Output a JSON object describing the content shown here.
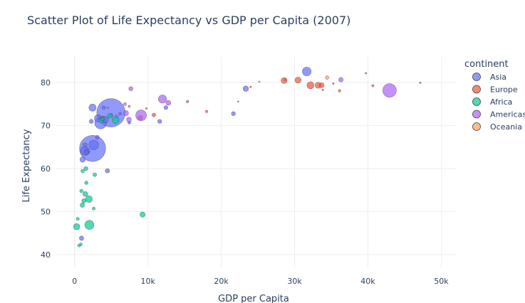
{
  "chart_data": {
    "type": "scatter",
    "title": "Scatter Plot of Life Expectancy vs GDP per Capita (2007)",
    "xlabel": "GDP per Capita",
    "ylabel": "Life Expectancy",
    "xlim": [
      -2500,
      52000
    ],
    "ylim": [
      37,
      86
    ],
    "x_ticks": [
      0,
      10000,
      20000,
      30000,
      40000,
      50000
    ],
    "x_tick_labels": [
      "0",
      "10k",
      "20k",
      "30k",
      "40k",
      "50k"
    ],
    "y_ticks": [
      40,
      50,
      60,
      70,
      80
    ],
    "y_tick_labels": [
      "40",
      "50",
      "60",
      "70",
      "80"
    ],
    "grid": true,
    "legend": {
      "title": "continent",
      "placement": "right"
    },
    "series": [
      {
        "name": "Asia",
        "color": "#636efa",
        "points": [
          [
            4959,
            73.0,
            1319
          ],
          [
            2452,
            64.7,
            1110
          ],
          [
            3541,
            70.6,
            223
          ],
          [
            2605,
            65.5,
            150
          ],
          [
            1391,
            64.1,
            129
          ],
          [
            3190,
            71.7,
            85
          ],
          [
            2442,
            74.2,
            85
          ],
          [
            1713,
            64.0,
            48
          ],
          [
            1091,
            62.1,
            47
          ],
          [
            31656,
            82.6,
            127
          ],
          [
            23348,
            78.6,
            49
          ],
          [
            4185,
            71.4,
            70
          ],
          [
            12452,
            74.2,
            24
          ],
          [
            28718,
            80.7,
            10
          ],
          [
            47143,
            80.0,
            4
          ],
          [
            39725,
            82.2,
            4.5
          ],
          [
            2281,
            71.0,
            28
          ],
          [
            1593,
            63.8,
            32
          ],
          [
            4471,
            59.5,
            31
          ],
          [
            7458,
            70.7,
            14
          ],
          [
            11606,
            71.0,
            27
          ],
          [
            21655,
            72.8,
            27
          ],
          [
            3970,
            74.2,
            20
          ],
          [
            6223,
            72.8,
            13
          ],
          [
            944,
            43.8,
            32
          ],
          [
            4959,
            72.4,
            23
          ],
          [
            3095,
            67.3,
            24
          ],
          [
            1441,
            65.5,
            29
          ],
          [
            22316,
            75.6,
            3
          ],
          [
            4519,
            74.2,
            2.5
          ]
        ]
      },
      {
        "name": "Europe",
        "color": "#EF553B",
        "points": [
          [
            32170,
            79.4,
            82
          ],
          [
            30470,
            80.6,
            61
          ],
          [
            33203,
            79.4,
            61
          ],
          [
            28570,
            80.5,
            59
          ],
          [
            33692,
            79.4,
            40
          ],
          [
            8948,
            71.8,
            38
          ],
          [
            10808,
            72.5,
            22
          ],
          [
            15390,
            75.6,
            10
          ],
          [
            36126,
            78.1,
            10
          ],
          [
            40676,
            79.3,
            8
          ],
          [
            33860,
            78.3,
            5
          ],
          [
            35278,
            79.8,
            4.6
          ],
          [
            18009,
            73.3,
            10
          ],
          [
            7446,
            74.5,
            7
          ],
          [
            9787,
            74.0,
            4.5
          ],
          [
            24000,
            79.0,
            5
          ]
        ]
      },
      {
        "name": "Africa",
        "color": "#00cc96",
        "points": [
          [
            2014,
            46.9,
            135
          ],
          [
            1952,
            52.9,
            76
          ],
          [
            5581,
            71.3,
            80
          ],
          [
            277,
            46.5,
            64
          ],
          [
            1463,
            54.1,
            40
          ],
          [
            9270,
            49.3,
            44
          ],
          [
            1056,
            51.5,
            32
          ],
          [
            3633,
            71.2,
            38
          ],
          [
            1270,
            52.5,
            29
          ],
          [
            3820,
            71.7,
            33
          ],
          [
            1544,
            60.0,
            25
          ],
          [
            4797,
            72.3,
            34
          ],
          [
            2749,
            58.6,
            23
          ],
          [
            1598,
            56.7,
            19
          ],
          [
            862,
            42.4,
            12
          ],
          [
            430,
            48.3,
            15
          ],
          [
            926,
            54.8,
            19
          ],
          [
            619,
            42.1,
            14
          ],
          [
            2602,
            50.7,
            15
          ],
          [
            1107,
            59.4,
            20
          ]
        ]
      },
      {
        "name": "Americas",
        "color": "#ab63fa",
        "points": [
          [
            42952,
            78.2,
            301
          ],
          [
            9066,
            72.4,
            190
          ],
          [
            11978,
            76.2,
            108
          ],
          [
            7007,
            72.9,
            44
          ],
          [
            7408,
            71.4,
            40
          ],
          [
            12779,
            75.3,
            40
          ],
          [
            36319,
            80.7,
            33
          ],
          [
            7670,
            78.6,
            28
          ],
          [
            5728,
            72.2,
            13
          ],
          [
            6873,
            75.0,
            14
          ],
          [
            3822,
            71.9,
            9
          ]
        ]
      },
      {
        "name": "Oceania",
        "color": "#FFA15A",
        "points": [
          [
            34435,
            81.2,
            20
          ],
          [
            25185,
            80.2,
            4
          ]
        ]
      }
    ]
  }
}
